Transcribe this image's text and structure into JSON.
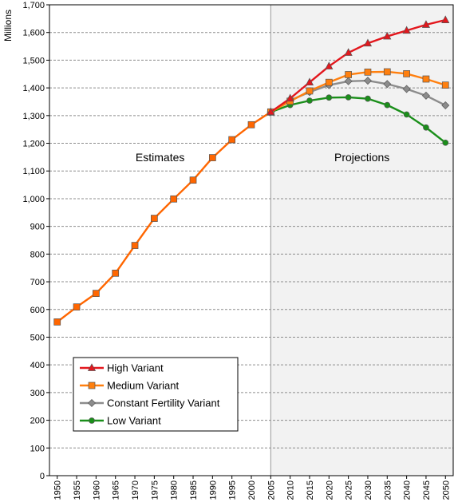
{
  "chart_data": {
    "type": "line",
    "ylabel": "Millions",
    "ylim": [
      0,
      1700
    ],
    "y_ticks": [
      "0",
      "100",
      "200",
      "300",
      "400",
      "500",
      "600",
      "700",
      "800",
      "900",
      "1,000",
      "1,100",
      "1,200",
      "1,300",
      "1,400",
      "1,500",
      "1,600",
      "1,700"
    ],
    "x_ticks": [
      "1950",
      "1955",
      "1960",
      "1965",
      "1970",
      "1975",
      "1980",
      "1985",
      "1990",
      "1995",
      "2000",
      "2005",
      "2010",
      "2015",
      "2020",
      "2025",
      "2030",
      "2035",
      "2040",
      "2045",
      "2050"
    ],
    "region_labels": {
      "estimates": "Estimates",
      "projections": "Projections"
    },
    "projection_start": "2005",
    "grid": true,
    "legend_position": "bottom-left",
    "estimates": {
      "x": [
        1950,
        1955,
        1960,
        1965,
        1970,
        1975,
        1980,
        1985,
        1990,
        1995,
        2000,
        2005
      ],
      "values": [
        555,
        609,
        658,
        731,
        831,
        929,
        999,
        1067,
        1148,
        1213,
        1267,
        1313
      ],
      "color": "#ff6600",
      "marker": "square"
    },
    "series": [
      {
        "name": "High Variant",
        "color": "#e3171d",
        "marker": "triangle",
        "x": [
          2005,
          2010,
          2015,
          2020,
          2025,
          2030,
          2035,
          2040,
          2045,
          2050
        ],
        "values": [
          1313,
          1362,
          1420,
          1478,
          1527,
          1561,
          1586,
          1607,
          1628,
          1645
        ]
      },
      {
        "name": "Medium Variant",
        "color": "#ff7f0e",
        "marker": "square",
        "x": [
          2005,
          2010,
          2015,
          2020,
          2025,
          2030,
          2035,
          2040,
          2045,
          2050
        ],
        "values": [
          1313,
          1352,
          1389,
          1420,
          1448,
          1457,
          1458,
          1451,
          1432,
          1410
        ]
      },
      {
        "name": "Constant Fertility Variant",
        "color": "#8c8c8c",
        "marker": "diamond",
        "x": [
          2005,
          2010,
          2015,
          2020,
          2025,
          2030,
          2035,
          2040,
          2045,
          2050
        ],
        "values": [
          1313,
          1355,
          1385,
          1410,
          1424,
          1426,
          1414,
          1396,
          1372,
          1337
        ]
      },
      {
        "name": "Low Variant",
        "color": "#1a8f1a",
        "marker": "circle",
        "x": [
          2005,
          2010,
          2015,
          2020,
          2025,
          2030,
          2035,
          2040,
          2045,
          2050
        ],
        "values": [
          1313,
          1338,
          1354,
          1365,
          1366,
          1361,
          1338,
          1304,
          1257,
          1202
        ]
      }
    ]
  }
}
